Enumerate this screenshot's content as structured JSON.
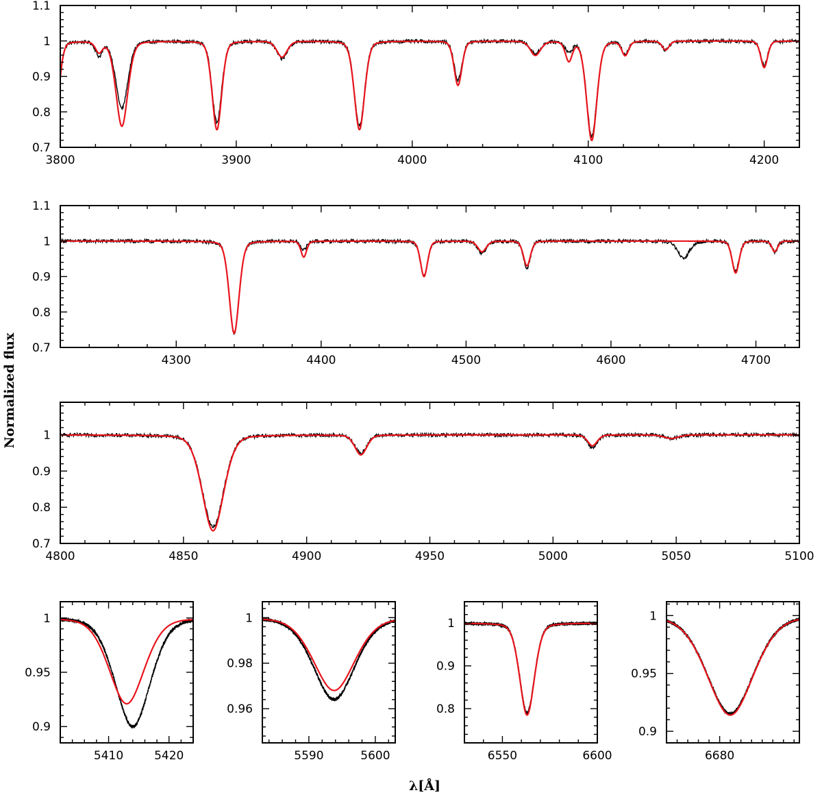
{
  "figure": {
    "ylabel": "Normalized flux",
    "xlabel": "λ[Å]",
    "colors": {
      "observed": "#000000",
      "model": "#e8141c",
      "axes": "#000000"
    }
  },
  "chart_data": [
    {
      "id": "panel-1",
      "type": "line",
      "xlim": [
        3800,
        4220
      ],
      "ylim": [
        0.7,
        1.1
      ],
      "xticks": [
        3800,
        3900,
        4000,
        4100,
        4200
      ],
      "yticks": [
        0.7,
        0.8,
        0.9,
        1,
        1.1
      ],
      "yticklabels": [
        "0.7",
        "0.8",
        "0.9",
        "1",
        "1.1"
      ],
      "continuum": 1.0,
      "lines": [
        {
          "center": 3797,
          "obs_depth": 0.22,
          "model_depth": 0.22,
          "width": 2.5
        },
        {
          "center": 3822,
          "obs_depth": 0.04,
          "model_depth": 0.03,
          "width": 2.0
        },
        {
          "center": 3835,
          "obs_depth": 0.19,
          "model_depth": 0.24,
          "width": 3.5
        },
        {
          "center": 3889,
          "obs_depth": 0.23,
          "model_depth": 0.25,
          "width": 2.8
        },
        {
          "center": 3926,
          "obs_depth": 0.05,
          "model_depth": 0.045,
          "width": 3.0
        },
        {
          "center": 3970,
          "obs_depth": 0.24,
          "model_depth": 0.25,
          "width": 3.0
        },
        {
          "center": 4026,
          "obs_depth": 0.11,
          "model_depth": 0.125,
          "width": 2.3
        },
        {
          "center": 4070,
          "obs_depth": 0.035,
          "model_depth": 0.04,
          "width": 3.0
        },
        {
          "center": 4089,
          "obs_depth": 0.03,
          "model_depth": 0.055,
          "width": 2.0
        },
        {
          "center": 4102,
          "obs_depth": 0.27,
          "model_depth": 0.28,
          "width": 3.0
        },
        {
          "center": 4121,
          "obs_depth": 0.035,
          "model_depth": 0.04,
          "width": 2.0
        },
        {
          "center": 4144,
          "obs_depth": 0.025,
          "model_depth": 0.025,
          "width": 2.0
        },
        {
          "center": 4200,
          "obs_depth": 0.07,
          "model_depth": 0.075,
          "width": 2.0
        }
      ]
    },
    {
      "id": "panel-2",
      "type": "line",
      "xlim": [
        4220,
        4730
      ],
      "ylim": [
        0.7,
        1.1
      ],
      "xticks": [
        4300,
        4400,
        4500,
        4600,
        4700
      ],
      "yticks": [
        0.7,
        0.8,
        0.9,
        1,
        1.1
      ],
      "yticklabels": [
        "0.7",
        "0.8",
        "0.9",
        "1",
        "1.1"
      ],
      "continuum": 1.0,
      "lines": [
        {
          "center": 4340,
          "obs_depth": 0.26,
          "model_depth": 0.26,
          "width": 3.5
        },
        {
          "center": 4388,
          "obs_depth": 0.025,
          "model_depth": 0.045,
          "width": 2.0
        },
        {
          "center": 4471,
          "obs_depth": 0.1,
          "model_depth": 0.1,
          "width": 2.5
        },
        {
          "center": 4511,
          "obs_depth": 0.035,
          "model_depth": 0.03,
          "width": 3.0
        },
        {
          "center": 4542,
          "obs_depth": 0.075,
          "model_depth": 0.07,
          "width": 2.5
        },
        {
          "center": 4650,
          "obs_depth": 0.05,
          "model_depth": 0.0,
          "width": 4.0
        },
        {
          "center": 4686,
          "obs_depth": 0.085,
          "model_depth": 0.09,
          "width": 2.5
        },
        {
          "center": 4713,
          "obs_depth": 0.03,
          "model_depth": 0.03,
          "width": 2.0
        }
      ]
    },
    {
      "id": "panel-3",
      "type": "line",
      "xlim": [
        4800,
        5100
      ],
      "ylim": [
        0.7,
        1.09
      ],
      "xticks": [
        4800,
        4850,
        4900,
        4950,
        5000,
        5050,
        5100
      ],
      "yticks": [
        0.7,
        0.8,
        0.9,
        1
      ],
      "yticklabels": [
        "0.7",
        "0.8",
        "0.9",
        "1"
      ],
      "continuum": 1.0,
      "lines": [
        {
          "center": 4862,
          "obs_depth": 0.255,
          "model_depth": 0.265,
          "width": 4.5
        },
        {
          "center": 4922,
          "obs_depth": 0.05,
          "model_depth": 0.055,
          "width": 2.5
        },
        {
          "center": 5016,
          "obs_depth": 0.035,
          "model_depth": 0.03,
          "width": 2.0
        },
        {
          "center": 5048,
          "obs_depth": 0.01,
          "model_depth": 0.01,
          "width": 3.0
        }
      ]
    },
    {
      "id": "panel-4",
      "type": "line",
      "xlim": [
        5402,
        5424
      ],
      "ylim": [
        0.885,
        1.015
      ],
      "xticks": [
        5410,
        5420
      ],
      "yticks": [
        0.9,
        0.95,
        1
      ],
      "yticklabels": [
        "0.9",
        "0.95",
        "1"
      ],
      "continuum": 1.0,
      "lines": [
        {
          "center": 5414,
          "obs_depth": 0.1,
          "model_depth": 0.0,
          "width": 3.0
        },
        {
          "center": 5413,
          "obs_depth": 0.0,
          "model_depth": 0.079,
          "width": 3.0
        }
      ]
    },
    {
      "id": "panel-5",
      "type": "line",
      "xlim": [
        5583,
        5603
      ],
      "ylim": [
        0.945,
        1.007
      ],
      "xticks": [
        5590,
        5600
      ],
      "yticks": [
        0.96,
        0.98,
        1
      ],
      "yticklabels": [
        "0.96",
        "0.98",
        "1"
      ],
      "continuum": 1.0,
      "lines": [
        {
          "center": 5593.8,
          "obs_depth": 0.036,
          "model_depth": 0.032,
          "width": 3.2
        }
      ]
    },
    {
      "id": "panel-6",
      "type": "line",
      "xlim": [
        6530,
        6600
      ],
      "ylim": [
        0.72,
        1.05
      ],
      "xticks": [
        6550,
        6600
      ],
      "yticks": [
        0.8,
        0.9,
        1
      ],
      "yticklabels": [
        "0.8",
        "0.9",
        "1"
      ],
      "continuum": 1.0,
      "lines": [
        {
          "center": 6563,
          "obs_depth": 0.21,
          "model_depth": 0.215,
          "width": 4.0
        }
      ]
    },
    {
      "id": "panel-7",
      "type": "line",
      "xlim": [
        6670,
        6695
      ],
      "ylim": [
        0.89,
        1.012
      ],
      "xticks": [
        6680
      ],
      "yticks": [
        0.9,
        0.95,
        1
      ],
      "yticklabels": [
        "0.9",
        "0.95",
        "1"
      ],
      "continuum": 1.0,
      "lines": [
        {
          "center": 6682,
          "obs_depth": 0.085,
          "model_depth": 0.086,
          "width": 4.5
        }
      ]
    }
  ]
}
